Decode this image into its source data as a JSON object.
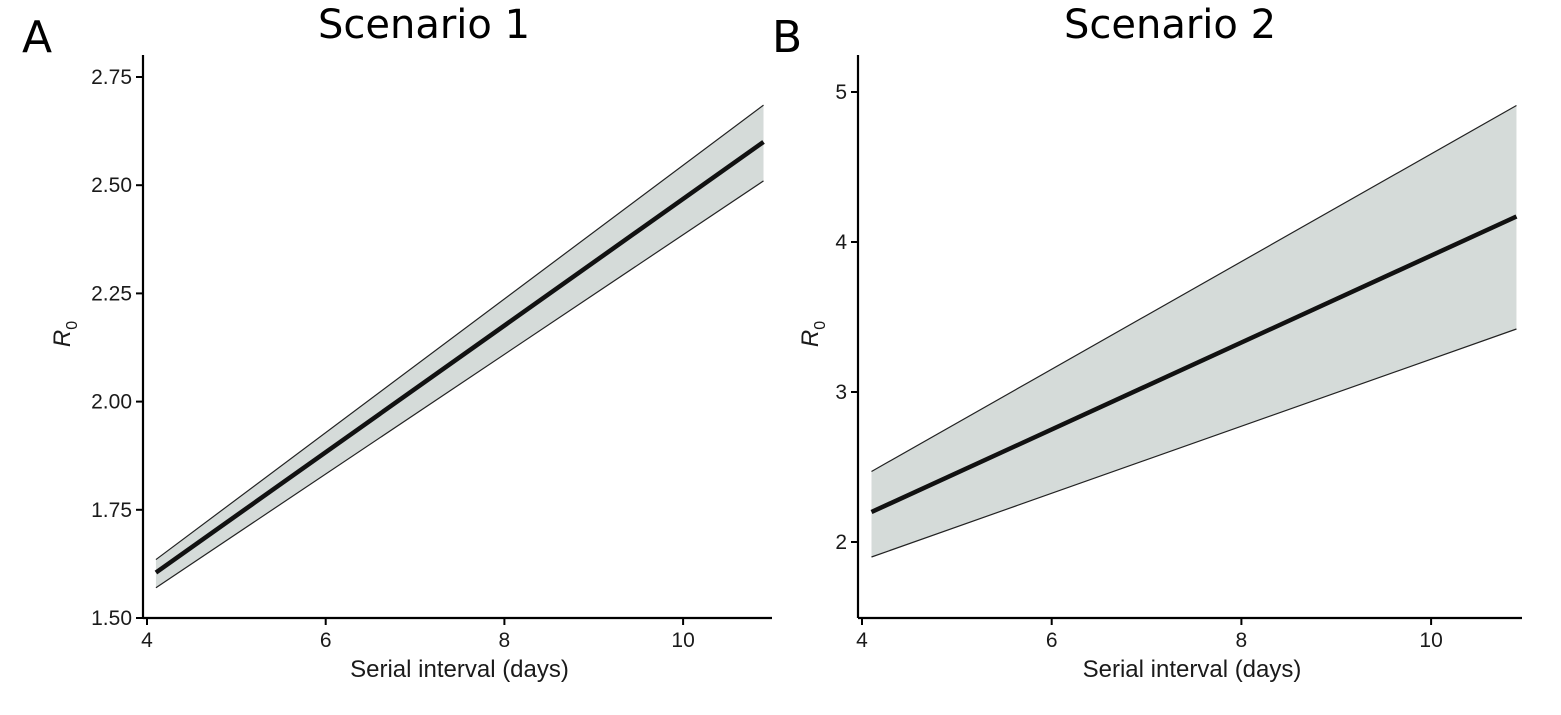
{
  "chart_data": [
    {
      "panel": "A",
      "type": "line",
      "title": "Scenario 1",
      "xlabel": "Serial interval (days)",
      "ylabel": "R",
      "ylabel_subscript": "0",
      "xlim": [
        4,
        11
      ],
      "ylim": [
        1.5,
        2.8
      ],
      "xticks": [
        4,
        6,
        8,
        10
      ],
      "yticks": [
        1.5,
        1.75,
        2.0,
        2.25,
        2.5,
        2.75
      ],
      "ytick_labels": [
        "1.50",
        "1.75",
        "2.00",
        "2.25",
        "2.50",
        "2.75"
      ],
      "grid": false,
      "band_color": "#d5dbd9",
      "line_color": "#111111",
      "series": [
        {
          "x": [
            4.1,
            10.9
          ],
          "y": [
            1.605,
            2.6
          ],
          "lower": [
            1.57,
            2.51
          ],
          "upper": [
            1.635,
            2.685
          ]
        }
      ]
    },
    {
      "panel": "B",
      "type": "line",
      "title": "Scenario 2",
      "xlabel": "Serial interval (days)",
      "ylabel": "R",
      "ylabel_subscript": "0",
      "xlim": [
        4,
        11
      ],
      "ylim": [
        1.5,
        5.25
      ],
      "xticks": [
        4,
        6,
        8,
        10
      ],
      "yticks": [
        2,
        3,
        4,
        5
      ],
      "ytick_labels": [
        "2",
        "3",
        "4",
        "5"
      ],
      "grid": false,
      "band_color": "#d5dbd9",
      "line_color": "#111111",
      "series": [
        {
          "x": [
            4.1,
            10.9
          ],
          "y": [
            2.2,
            4.17
          ],
          "lower": [
            1.9,
            3.42
          ],
          "upper": [
            2.47,
            4.91
          ]
        }
      ]
    }
  ]
}
